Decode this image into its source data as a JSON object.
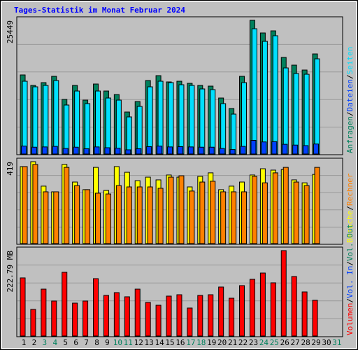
{
  "title": "Tages-Statistik im Monat Februar 2024",
  "legend_separator": "/",
  "chart_data": [
    {
      "type": "bar",
      "ylim": [
        0,
        25449
      ],
      "yticks": [
        25449
      ],
      "series": [
        {
          "name": "Anfragen",
          "color": "#00805c",
          "values": [
            15052,
            13054,
            13587,
            14786,
            10390,
            13054,
            10257,
            13322,
            11988,
            11322,
            7992,
            9990,
            13987,
            14918,
            13720,
            13853,
            13454,
            13054,
            12921,
            10656,
            8658,
            14786,
            25449,
            23044,
            23444,
            18382,
            16917,
            15984,
            19048,
            null,
            null
          ]
        },
        {
          "name": "Dateien",
          "color": "#0040ff",
          "values": [
            1500,
            1300,
            1350,
            1450,
            1050,
            1300,
            1000,
            1350,
            1200,
            1100,
            800,
            1000,
            1400,
            1500,
            1350,
            1400,
            1350,
            1300,
            1300,
            1050,
            850,
            1450,
            2600,
            2300,
            2350,
            1850,
            1700,
            1600,
            1900,
            null,
            null
          ]
        },
        {
          "name": "Seiten",
          "color": "#00e0ff",
          "values": [
            13853,
            12787,
            13054,
            13986,
            9324,
            11988,
            9590,
            11988,
            10656,
            10256,
            7060,
            9058,
            12787,
            13853,
            13586,
            13187,
            13054,
            12388,
            12254,
            9590,
            7592,
            13586,
            23843,
            21445,
            22511,
            16384,
            15318,
            15185,
            18115,
            null,
            null
          ]
        }
      ]
    },
    {
      "type": "bar",
      "ylim": [
        0,
        419
      ],
      "yticks": [
        419
      ],
      "series": [
        {
          "name": "Besuche",
          "color": "#ffff00",
          "values": [
            394,
            419,
            294,
            265,
            405,
            315,
            276,
            390,
            272,
            394,
            365,
            322,
            340,
            326,
            351,
            340,
            290,
            344,
            362,
            276,
            294,
            315,
            351,
            383,
            376,
            379,
            326,
            311,
            354,
            null,
            null
          ]
        },
        {
          "name": "Rechner",
          "color": "#ff8000",
          "values": [
            394,
            405,
            265,
            265,
            390,
            297,
            276,
            258,
            254,
            297,
            290,
            290,
            290,
            283,
            340,
            347,
            269,
            315,
            319,
            265,
            265,
            265,
            344,
            311,
            362,
            390,
            315,
            297,
            390,
            null,
            null
          ]
        }
      ]
    },
    {
      "type": "bar",
      "ylim": [
        0,
        222.79
      ],
      "yticks": [
        {
          "value": 222.79,
          "label": "222.79 MB"
        }
      ],
      "categories": [
        "1",
        "2",
        "3",
        "4",
        "5",
        "6",
        "7",
        "8",
        "9",
        "10",
        "11",
        "12",
        "13",
        "14",
        "15",
        "16",
        "17",
        "18",
        "19",
        "20",
        "21",
        "22",
        "23",
        "24",
        "25",
        "26",
        "27",
        "28",
        "29",
        "30",
        "31"
      ],
      "category_colors": [
        "#000000",
        "#000000",
        "#00805c",
        "#00805c",
        "#000000",
        "#000000",
        "#000000",
        "#000000",
        "#000000",
        "#00805c",
        "#00805c",
        "#000000",
        "#000000",
        "#000000",
        "#000000",
        "#000000",
        "#00805c",
        "#00805c",
        "#000000",
        "#000000",
        "#000000",
        "#000000",
        "#000000",
        "#00805c",
        "#00805c",
        "#000000",
        "#000000",
        "#000000",
        "#000000",
        "#000000",
        "#00805c"
      ],
      "series": [
        {
          "name": "Volumen",
          "color": "#ff0000",
          "values": [
            151.6,
            69.4,
            122.3,
            91.3,
            166.2,
            85.8,
            91.3,
            149.7,
            105.9,
            113.2,
            102.3,
            122.3,
            87.6,
            80.3,
            104.1,
            107.7,
            73.0,
            105.9,
            107.7,
            127.8,
            98.6,
            131.5,
            147.9,
            164.3,
            138.8,
            222.79,
            155.2,
            115.0,
            93.1,
            null,
            null
          ]
        }
      ],
      "extra_legend": [
        {
          "name": "Vol. In",
          "color": "#0040ff"
        },
        {
          "name": "Vol. Out",
          "color": "#00805c"
        }
      ]
    }
  ]
}
